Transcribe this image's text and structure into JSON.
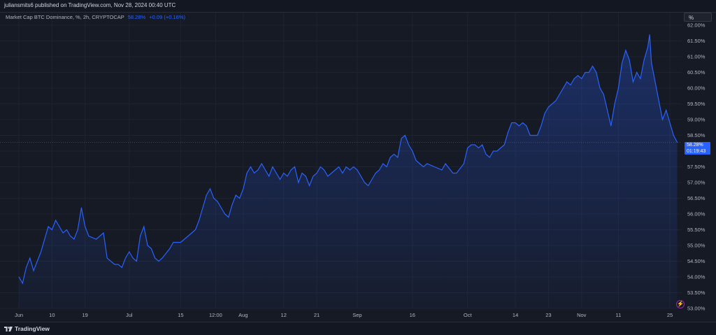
{
  "header": {
    "published_text": "juliansmits6 published on TradingView.com, Nov 28, 2024 00:40 UTC"
  },
  "legend": {
    "symbol_text": "Market Cap BTC Dominance, %, 2h, CRYPTOCAP",
    "last_value": "58.28%",
    "change": "+0.09 (+0.16%)"
  },
  "scale_button": {
    "label": "%"
  },
  "price_tag": {
    "value": "58.28%",
    "countdown": "01:19:43"
  },
  "footer": {
    "brand": "TradingView"
  },
  "icons": {
    "alert": "lightning-icon"
  },
  "colors": {
    "line": "#2962ff",
    "background": "#161a25",
    "grid": "#1f2330"
  },
  "chart_data": {
    "type": "area",
    "title": "Market Cap BTC Dominance, %, 2h, CRYPTOCAP",
    "ylim": [
      53.0,
      62.0
    ],
    "y_ticks": [
      "62.00%",
      "61.50%",
      "61.00%",
      "60.50%",
      "60.00%",
      "59.50%",
      "59.00%",
      "58.50%",
      "58.00%",
      "57.50%",
      "57.00%",
      "56.50%",
      "56.00%",
      "55.50%",
      "55.00%",
      "54.50%",
      "54.00%",
      "53.50%",
      "53.00%"
    ],
    "x_tick_labels": [
      "Jun",
      "10",
      "19",
      "Jul",
      "15",
      "12:00",
      "Aug",
      "12",
      "21",
      "Sep",
      "16",
      "Oct",
      "14",
      "23",
      "Nov",
      "11",
      "25"
    ],
    "grid": true,
    "series": [
      {
        "values": [
          [
            "Jun 1",
            54.0
          ],
          [
            "Jun 2",
            53.8
          ],
          [
            "Jun 3",
            54.3
          ],
          [
            "Jun 4",
            54.6
          ],
          [
            "Jun 5",
            54.2
          ],
          [
            "Jun 6",
            54.5
          ],
          [
            "Jun 7",
            54.8
          ],
          [
            "Jun 8",
            55.2
          ],
          [
            "Jun 9",
            55.6
          ],
          [
            "Jun 10",
            55.5
          ],
          [
            "Jun 11",
            55.8
          ],
          [
            "Jun 12",
            55.6
          ],
          [
            "Jun 13",
            55.4
          ],
          [
            "Jun 14",
            55.5
          ],
          [
            "Jun 15",
            55.3
          ],
          [
            "Jun 16",
            55.2
          ],
          [
            "Jun 17",
            55.5
          ],
          [
            "Jun 18",
            56.2
          ],
          [
            "Jun 19",
            55.6
          ],
          [
            "Jun 20",
            55.3
          ],
          [
            "Jun 22",
            55.2
          ],
          [
            "Jun 24",
            55.4
          ],
          [
            "Jun 25",
            54.6
          ],
          [
            "Jun 26",
            54.5
          ],
          [
            "Jun 27",
            54.4
          ],
          [
            "Jun 28",
            54.4
          ],
          [
            "Jun 29",
            54.3
          ],
          [
            "Jun 30",
            54.6
          ],
          [
            "Jul 1",
            54.8
          ],
          [
            "Jul 2",
            54.6
          ],
          [
            "Jul 3",
            54.5
          ],
          [
            "Jul 4",
            55.3
          ],
          [
            "Jul 5",
            55.6
          ],
          [
            "Jul 6",
            55.0
          ],
          [
            "Jul 7",
            54.9
          ],
          [
            "Jul 8",
            54.6
          ],
          [
            "Jul 9",
            54.5
          ],
          [
            "Jul 10",
            54.6
          ],
          [
            "Jul 12",
            54.9
          ],
          [
            "Jul 13",
            55.1
          ],
          [
            "Jul 15",
            55.1
          ],
          [
            "Jul 17",
            55.3
          ],
          [
            "Jul 19",
            55.5
          ],
          [
            "Jul 20",
            55.8
          ],
          [
            "Jul 21",
            56.2
          ],
          [
            "Jul 22",
            56.6
          ],
          [
            "Jul 23",
            56.8
          ],
          [
            "Jul 24",
            56.5
          ],
          [
            "Jul 25",
            56.4
          ],
          [
            "Jul 26",
            56.2
          ],
          [
            "Jul 27",
            56.0
          ],
          [
            "Jul 28",
            55.9
          ],
          [
            "Jul 29",
            56.3
          ],
          [
            "Jul 30",
            56.6
          ],
          [
            "Jul 31",
            56.5
          ],
          [
            "Aug 1",
            56.8
          ],
          [
            "Aug 2",
            57.3
          ],
          [
            "Aug 3",
            57.5
          ],
          [
            "Aug 4",
            57.3
          ],
          [
            "Aug 5",
            57.4
          ],
          [
            "Aug 6",
            57.6
          ],
          [
            "Aug 7",
            57.4
          ],
          [
            "Aug 8",
            57.2
          ],
          [
            "Aug 9",
            57.5
          ],
          [
            "Aug 10",
            57.3
          ],
          [
            "Aug 11",
            57.1
          ],
          [
            "Aug 12",
            57.3
          ],
          [
            "Aug 13",
            57.2
          ],
          [
            "Aug 14",
            57.4
          ],
          [
            "Aug 15",
            57.5
          ],
          [
            "Aug 16",
            57.0
          ],
          [
            "Aug 17",
            57.3
          ],
          [
            "Aug 18",
            57.2
          ],
          [
            "Aug 19",
            56.9
          ],
          [
            "Aug 20",
            57.2
          ],
          [
            "Aug 21",
            57.3
          ],
          [
            "Aug 22",
            57.5
          ],
          [
            "Aug 23",
            57.4
          ],
          [
            "Aug 24",
            57.2
          ],
          [
            "Aug 25",
            57.3
          ],
          [
            "Aug 26",
            57.4
          ],
          [
            "Aug 27",
            57.5
          ],
          [
            "Aug 28",
            57.3
          ],
          [
            "Aug 29",
            57.5
          ],
          [
            "Aug 30",
            57.4
          ],
          [
            "Aug 31",
            57.5
          ],
          [
            "Sep 1",
            57.4
          ],
          [
            "Sep 2",
            57.2
          ],
          [
            "Sep 3",
            57.0
          ],
          [
            "Sep 4",
            56.9
          ],
          [
            "Sep 5",
            57.1
          ],
          [
            "Sep 6",
            57.3
          ],
          [
            "Sep 7",
            57.4
          ],
          [
            "Sep 8",
            57.6
          ],
          [
            "Sep 9",
            57.5
          ],
          [
            "Sep 10",
            57.8
          ],
          [
            "Sep 11",
            57.9
          ],
          [
            "Sep 12",
            57.8
          ],
          [
            "Sep 13",
            58.4
          ],
          [
            "Sep 14",
            58.5
          ],
          [
            "Sep 15",
            58.2
          ],
          [
            "Sep 16",
            58.0
          ],
          [
            "Sep 17",
            57.7
          ],
          [
            "Sep 18",
            57.6
          ],
          [
            "Sep 19",
            57.5
          ],
          [
            "Sep 20",
            57.6
          ],
          [
            "Sep 22",
            57.5
          ],
          [
            "Sep 24",
            57.4
          ],
          [
            "Sep 25",
            57.6
          ],
          [
            "Sep 27",
            57.3
          ],
          [
            "Sep 28",
            57.3
          ],
          [
            "Sep 30",
            57.6
          ],
          [
            "Oct 1",
            58.1
          ],
          [
            "Oct 2",
            58.2
          ],
          [
            "Oct 3",
            58.2
          ],
          [
            "Oct 4",
            58.1
          ],
          [
            "Oct 5",
            58.2
          ],
          [
            "Oct 6",
            57.9
          ],
          [
            "Oct 7",
            57.8
          ],
          [
            "Oct 8",
            58.0
          ],
          [
            "Oct 9",
            58.0
          ],
          [
            "Oct 10",
            58.1
          ],
          [
            "Oct 11",
            58.2
          ],
          [
            "Oct 12",
            58.6
          ],
          [
            "Oct 13",
            58.9
          ],
          [
            "Oct 14",
            58.9
          ],
          [
            "Oct 15",
            58.8
          ],
          [
            "Oct 16",
            58.9
          ],
          [
            "Oct 17",
            58.8
          ],
          [
            "Oct 18",
            58.5
          ],
          [
            "Oct 19",
            58.5
          ],
          [
            "Oct 20",
            58.5
          ],
          [
            "Oct 21",
            58.8
          ],
          [
            "Oct 22",
            59.2
          ],
          [
            "Oct 23",
            59.4
          ],
          [
            "Oct 24",
            59.5
          ],
          [
            "Oct 25",
            59.6
          ],
          [
            "Oct 26",
            59.8
          ],
          [
            "Oct 27",
            60.0
          ],
          [
            "Oct 28",
            60.2
          ],
          [
            "Oct 29",
            60.1
          ],
          [
            "Oct 30",
            60.3
          ],
          [
            "Oct 31",
            60.4
          ],
          [
            "Nov 1",
            60.3
          ],
          [
            "Nov 2",
            60.5
          ],
          [
            "Nov 3",
            60.5
          ],
          [
            "Nov 4",
            60.7
          ],
          [
            "Nov 5",
            60.5
          ],
          [
            "Nov 6",
            60.0
          ],
          [
            "Nov 7",
            59.8
          ],
          [
            "Nov 8",
            59.3
          ],
          [
            "Nov 9",
            58.8
          ],
          [
            "Nov 10",
            59.5
          ],
          [
            "Nov 11",
            60.0
          ],
          [
            "Nov 12",
            60.8
          ],
          [
            "Nov 13",
            61.2
          ],
          [
            "Nov 14",
            60.9
          ],
          [
            "Nov 15",
            60.2
          ],
          [
            "Nov 16",
            60.5
          ],
          [
            "Nov 17",
            60.3
          ],
          [
            "Nov 18",
            60.9
          ],
          [
            "Nov 19",
            61.3
          ],
          [
            "Nov 19 12:00",
            61.7
          ],
          [
            "Nov 20",
            60.8
          ],
          [
            "Nov 21",
            60.2
          ],
          [
            "Nov 22",
            59.6
          ],
          [
            "Nov 23",
            59.0
          ],
          [
            "Nov 24",
            59.3
          ],
          [
            "Nov 25",
            58.9
          ],
          [
            "Nov 26",
            58.5
          ],
          [
            "Nov 27",
            58.28
          ]
        ]
      }
    ]
  }
}
